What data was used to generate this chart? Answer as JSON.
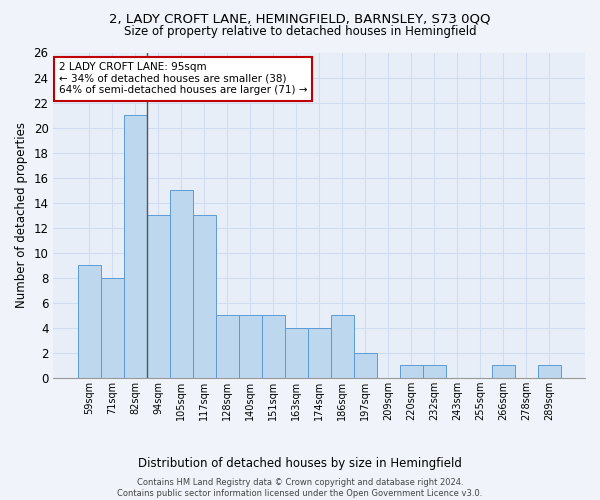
{
  "title_line1": "2, LADY CROFT LANE, HEMINGFIELD, BARNSLEY, S73 0QQ",
  "title_line2": "Size of property relative to detached houses in Hemingfield",
  "xlabel": "Distribution of detached houses by size in Hemingfield",
  "ylabel": "Number of detached properties",
  "categories": [
    "59sqm",
    "71sqm",
    "82sqm",
    "94sqm",
    "105sqm",
    "117sqm",
    "128sqm",
    "140sqm",
    "151sqm",
    "163sqm",
    "174sqm",
    "186sqm",
    "197sqm",
    "209sqm",
    "220sqm",
    "232sqm",
    "243sqm",
    "255sqm",
    "266sqm",
    "278sqm",
    "289sqm"
  ],
  "values": [
    9,
    8,
    21,
    13,
    15,
    13,
    5,
    5,
    5,
    4,
    4,
    5,
    2,
    0,
    1,
    1,
    0,
    0,
    1,
    0,
    1
  ],
  "bar_color": "#bdd7ee",
  "bar_edge_color": "#5b9bd5",
  "annotation_line1": "2 LADY CROFT LANE: 95sqm",
  "annotation_line2": "← 34% of detached houses are smaller (38)",
  "annotation_line3": "64% of semi-detached houses are larger (71) →",
  "annotation_box_color": "#ffffff",
  "annotation_box_edge_color": "#c00000",
  "vline_x": 2.5,
  "vline_color": "#555555",
  "ylim": [
    0,
    26
  ],
  "yticks": [
    0,
    2,
    4,
    6,
    8,
    10,
    12,
    14,
    16,
    18,
    20,
    22,
    24,
    26
  ],
  "grid_color": "#d0ddf0",
  "background_color": "#e8eef8",
  "fig_background": "#f0f4fa",
  "footnote_line1": "Contains HM Land Registry data © Crown copyright and database right 2024.",
  "footnote_line2": "Contains public sector information licensed under the Open Government Licence v3.0."
}
